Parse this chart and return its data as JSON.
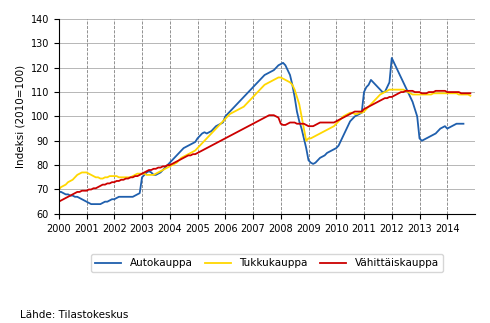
{
  "title": "",
  "ylabel": "Indeksi (2010=100)",
  "source_label": "Lähde: Tilastokeskus",
  "xlim": [
    2000,
    2015
  ],
  "ylim": [
    60,
    140
  ],
  "yticks": [
    60,
    70,
    80,
    90,
    100,
    110,
    120,
    130,
    140
  ],
  "xticks": [
    2000,
    2001,
    2002,
    2003,
    2004,
    2005,
    2006,
    2007,
    2008,
    2009,
    2010,
    2011,
    2012,
    2013,
    2014
  ],
  "dashed_x": [
    2001,
    2002,
    2003,
    2004,
    2005,
    2006,
    2007,
    2008,
    2009,
    2010,
    2011,
    2012,
    2013,
    2014
  ],
  "line_colors": [
    "#1f5fad",
    "#ffd700",
    "#cc0000"
  ],
  "legend_labels": [
    "Autokauppa",
    "Tukkukauppa",
    "Vähittäiskauppa"
  ],
  "auto_y": [
    69,
    69,
    68.5,
    68,
    68,
    67.5,
    67.5,
    67,
    67,
    66.5,
    66,
    65.5,
    65,
    64.5,
    64,
    64,
    64,
    64,
    64,
    64.5,
    65,
    65,
    65.5,
    66,
    66,
    66.5,
    67,
    67,
    67,
    67,
    67,
    67,
    67,
    67.5,
    68,
    68.5,
    75,
    76,
    77,
    77.5,
    77,
    76,
    76,
    76.5,
    77,
    78,
    79,
    80,
    81,
    82,
    83,
    84,
    85,
    86,
    87,
    87.5,
    88,
    88.5,
    89,
    89.5,
    91,
    92,
    93,
    93.5,
    93,
    93.5,
    94,
    95,
    96,
    96.5,
    97,
    97.5,
    100,
    101,
    102,
    103,
    104,
    105,
    106,
    107,
    108,
    109,
    110,
    111,
    112,
    113,
    114,
    115,
    116,
    117,
    117.5,
    118,
    118.5,
    119,
    120,
    121,
    121.5,
    122,
    121,
    119,
    117,
    113,
    108,
    102,
    98,
    95,
    91,
    87,
    82,
    81,
    80.5,
    81,
    82,
    83,
    83.5,
    84,
    85,
    85.5,
    86,
    86.5,
    87,
    88,
    90,
    92,
    94,
    96,
    98,
    99,
    100,
    100.5,
    101,
    101.5,
    110,
    112,
    113,
    115,
    114,
    113,
    112,
    111,
    110,
    110,
    112,
    114,
    124,
    122,
    120,
    118,
    116,
    114,
    112,
    110,
    108,
    106,
    103,
    100,
    91,
    90,
    90.5,
    91,
    91.5,
    92,
    92.5,
    93,
    94,
    95,
    95.5,
    96,
    95,
    95.5,
    96,
    96.5,
    97,
    97,
    97,
    97
  ],
  "tukku_y": [
    70,
    71,
    71.5,
    72,
    73,
    73.5,
    74,
    75,
    76,
    76.5,
    77,
    77,
    77,
    76.5,
    76,
    75.5,
    75,
    75,
    74.5,
    74.5,
    75,
    75,
    75.5,
    75.5,
    75.5,
    75.5,
    75,
    75,
    75,
    75,
    75,
    75,
    75.5,
    76,
    76.5,
    76.5,
    76.5,
    76.5,
    76,
    76,
    76,
    76,
    76.5,
    77,
    77.5,
    78,
    78.5,
    79,
    79.5,
    80,
    80.5,
    81,
    82,
    83,
    83.5,
    84,
    84.5,
    85,
    85.5,
    86,
    87,
    88,
    89,
    90,
    91,
    92,
    93,
    94,
    95,
    96,
    97,
    98,
    99,
    100,
    101,
    101.5,
    102,
    102.5,
    103,
    103.5,
    104,
    105,
    106,
    107,
    108,
    109,
    110,
    111,
    112,
    113,
    113.5,
    114,
    114.5,
    115,
    115.5,
    116,
    116,
    115.5,
    115,
    114.5,
    114,
    113,
    111,
    108,
    105,
    100,
    95,
    90,
    91,
    91,
    91.5,
    92,
    92.5,
    93,
    93.5,
    94,
    94.5,
    95,
    95.5,
    96,
    97,
    98,
    99,
    100,
    100.5,
    101,
    101.5,
    101.5,
    101,
    101,
    101.5,
    101.5,
    102,
    103,
    104,
    105,
    106,
    107,
    108,
    109,
    109.5,
    110,
    110.5,
    111,
    111,
    111,
    111,
    111,
    111,
    111,
    110.5,
    110,
    109.5,
    109,
    109,
    109,
    109,
    109,
    109,
    109,
    109,
    109,
    109.5,
    109.5,
    109.5,
    109.5,
    109.5,
    109.5,
    109.5,
    109.5,
    109.5,
    109.5,
    109.5,
    109,
    109,
    109,
    109,
    109,
    108.5
  ],
  "vahittais_y": [
    65,
    65.5,
    66,
    66.5,
    67,
    67.5,
    68,
    68.5,
    69,
    69,
    69.5,
    69.5,
    69.5,
    70,
    70,
    70.5,
    70.5,
    71,
    71.5,
    72,
    72,
    72.5,
    72.5,
    73,
    73,
    73.5,
    73.5,
    74,
    74,
    74.5,
    74.5,
    75,
    75,
    75.5,
    75.5,
    76,
    76.5,
    77,
    77.5,
    78,
    78,
    78.5,
    78.5,
    79,
    79,
    79.5,
    79.5,
    80,
    80,
    80.5,
    81,
    81.5,
    82,
    82.5,
    83,
    83.5,
    84,
    84,
    84.5,
    84.5,
    85,
    85.5,
    86,
    86.5,
    87,
    87.5,
    88,
    88.5,
    89,
    89.5,
    90,
    90.5,
    91,
    91.5,
    92,
    92.5,
    93,
    93.5,
    94,
    94.5,
    95,
    95.5,
    96,
    96.5,
    97,
    97.5,
    98,
    98.5,
    99,
    99.5,
    100,
    100.5,
    100.5,
    100.5,
    100,
    99.5,
    97,
    96.5,
    96.5,
    97,
    97.5,
    97.5,
    97.5,
    97,
    97,
    97,
    97,
    96.5,
    96,
    96,
    96,
    96.5,
    97,
    97.5,
    97.5,
    97.5,
    97.5,
    97.5,
    97.5,
    97.5,
    98,
    98.5,
    99,
    99.5,
    100,
    100.5,
    101,
    101.5,
    102,
    102,
    102,
    102,
    103,
    103.5,
    104,
    104.5,
    105,
    105.5,
    106,
    106.5,
    107,
    107.5,
    107.5,
    108,
    108,
    108.5,
    109,
    109.5,
    110,
    110,
    110.5,
    110.5,
    110.5,
    110.5,
    110,
    110,
    110,
    109.5,
    109.5,
    109.5,
    110,
    110,
    110,
    110.5,
    110.5,
    110.5,
    110.5,
    110.5,
    110,
    110,
    110,
    110,
    110,
    110,
    109.5,
    109.5,
    109.5,
    109.5,
    109.5
  ]
}
